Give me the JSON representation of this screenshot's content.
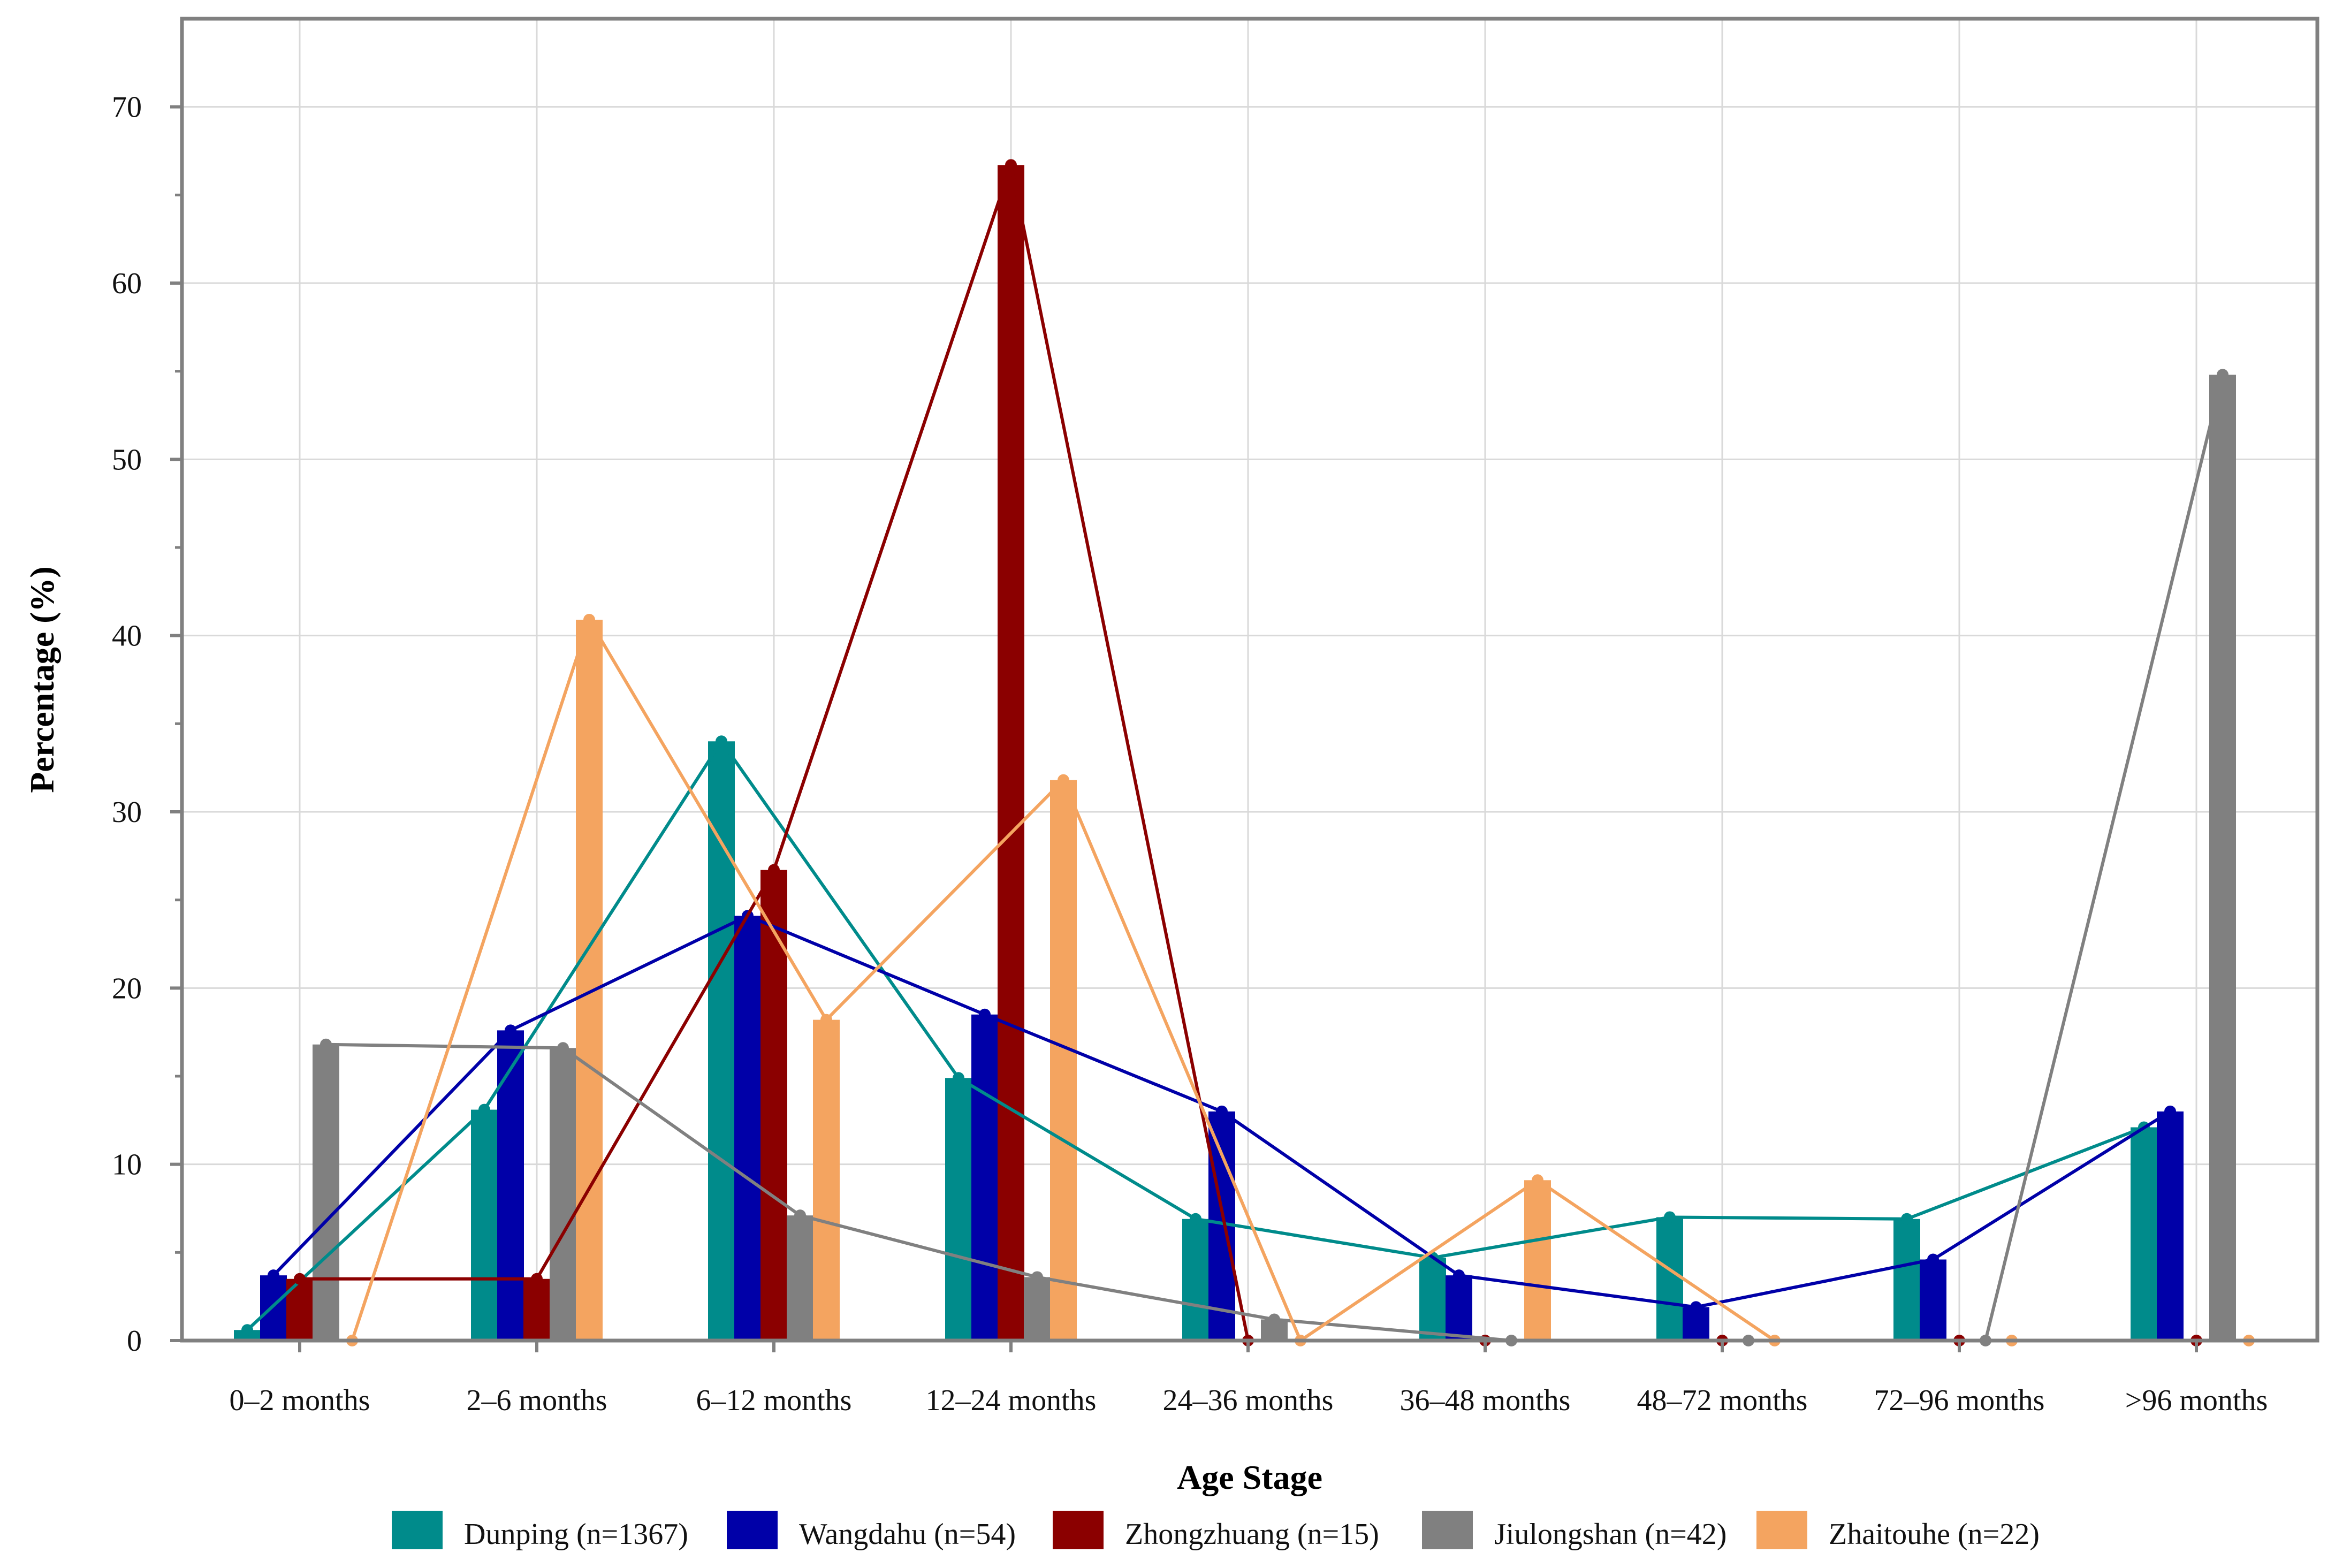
{
  "chart_data": {
    "type": "bar",
    "title": "",
    "xlabel": "Age Stage",
    "ylabel": "Percentage (%)",
    "ylim": [
      0,
      75
    ],
    "yticks": [
      0,
      10,
      20,
      30,
      40,
      50,
      60,
      70
    ],
    "grid": true,
    "legend_position": "bottom",
    "categories": [
      "0–2 months",
      "2–6 months",
      "6–12 months",
      "12–24 months",
      "24–36 months",
      "36–48 months",
      "48–72 months",
      "72–96 months",
      ">96 months"
    ],
    "series": [
      {
        "name": "Dunping (n=1367)",
        "color": "#008B8B",
        "values": [
          0.6,
          13.1,
          34.0,
          14.9,
          6.9,
          4.7,
          7.0,
          6.9,
          12.1
        ]
      },
      {
        "name": "Wangdahu (n=54)",
        "color": "#0000A8",
        "values": [
          3.7,
          17.6,
          24.1,
          18.5,
          13.0,
          3.7,
          1.9,
          4.6,
          13.0
        ]
      },
      {
        "name": "Zhongzhuang (n=15)",
        "color": "#8B0000",
        "values": [
          3.5,
          3.5,
          26.7,
          66.7,
          0,
          0,
          0,
          0,
          0
        ]
      },
      {
        "name": "Jiulongshan (n=42)",
        "color": "#808080",
        "values": [
          16.8,
          16.6,
          7.1,
          3.6,
          1.2,
          0,
          0,
          0,
          54.8
        ]
      },
      {
        "name": "Zhaitouhe (n=22)",
        "color": "#F4A460",
        "values": [
          0,
          40.9,
          18.2,
          31.8,
          0,
          9.1,
          0,
          0,
          0
        ]
      }
    ]
  }
}
